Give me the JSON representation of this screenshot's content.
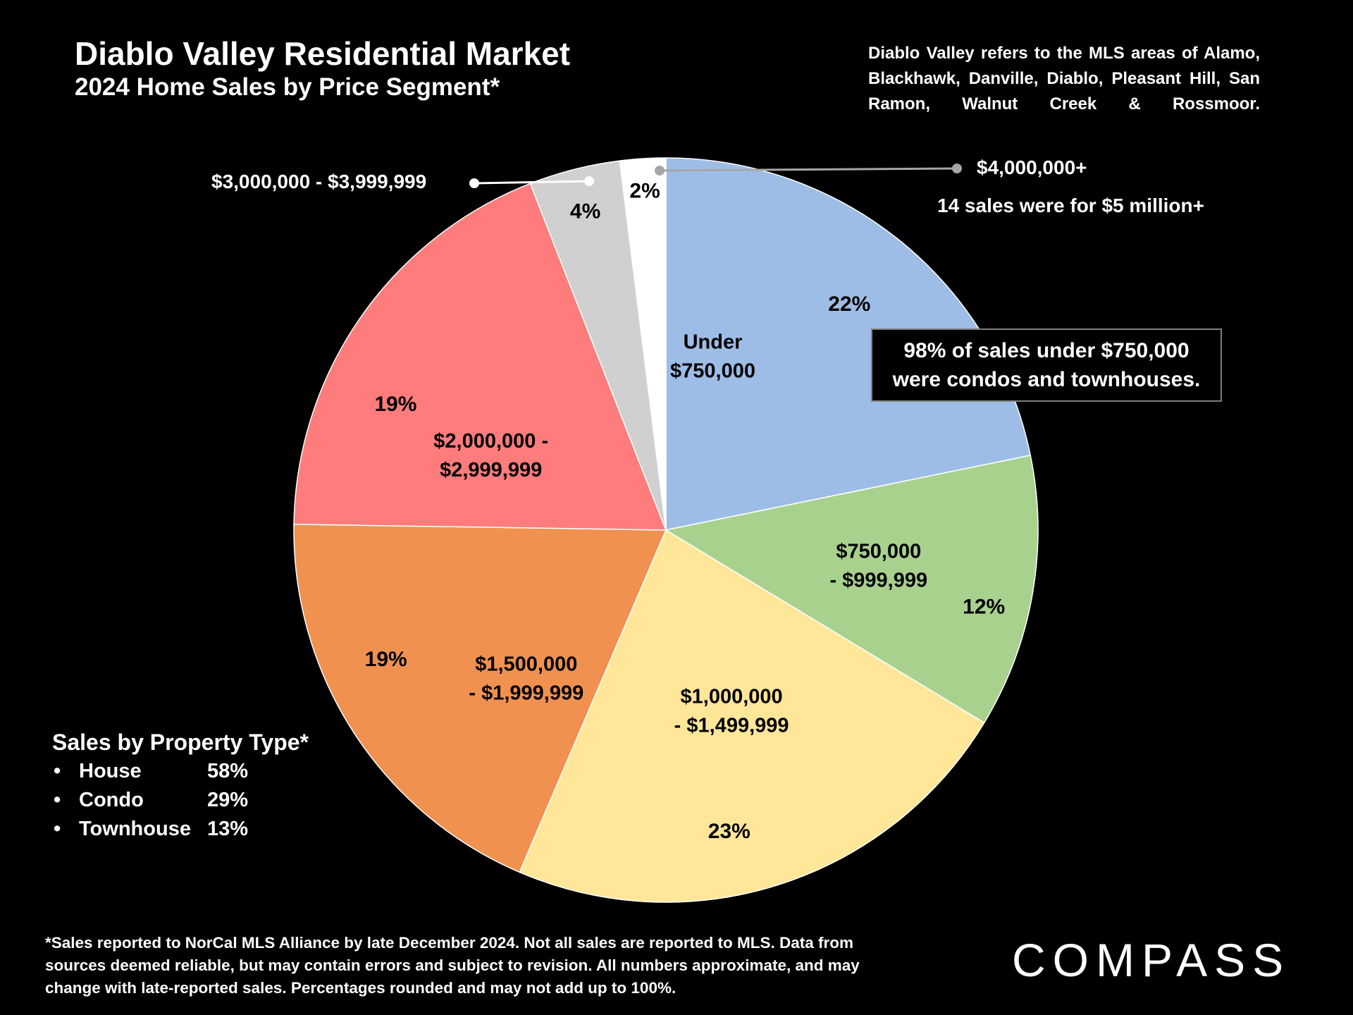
{
  "header": {
    "title": "Diablo Valley Residential Market",
    "subtitle": "2024 Home Sales by Price Segment*"
  },
  "note_top": "Diablo Valley refers to the MLS areas of Alamo, Blackhawk, Danville, Diablo, Pleasant Hill, San Ramon, Walnut Creek & Rossmoor.",
  "callout": {
    "line1": "98% of sales under $750,000",
    "line2": "were condos and townhouses."
  },
  "annotations": {
    "four_million": "$4,000,000+",
    "five_million": "14 sales were for $5 million+",
    "three_million": "$3,000,000 - $3,999,999"
  },
  "property_type": {
    "title": "Sales by Property Type*",
    "items": [
      {
        "name": "House",
        "pct": "58%"
      },
      {
        "name": "Condo",
        "pct": "29%"
      },
      {
        "name": "Townhouse",
        "pct": "13%"
      }
    ]
  },
  "footnote": "*Sales reported to NorCal MLS Alliance by late December 2024. Not all sales are reported to MLS. Data from sources deemed reliable, but may contain errors and subject to revision. All numbers approximate, and may change with late-reported sales. Percentages rounded and may not add up to 100%.",
  "logo": "COMPASS",
  "colors": {
    "background": "#000000",
    "under_750k": "#9dbde6",
    "750k_1m": "#a9d18e",
    "1m_1_5m": "#ffe699",
    "1_5m_2m": "#f0914f",
    "2m_3m": "#ff7c7c",
    "3m_4m": "#d0d0d0",
    "4m_plus": "#ffffff"
  },
  "chart_data": {
    "type": "pie",
    "title": "2024 Home Sales by Price Segment*",
    "start_angle_deg": 0,
    "direction": "clockwise",
    "slices": [
      {
        "label": "Under $750,000",
        "value": 22,
        "value_label": "22%",
        "color": "#9dbde6",
        "label_lines": [
          "Under",
          "$750,000"
        ]
      },
      {
        "label": "$750,000 - $999,999",
        "value": 12,
        "value_label": "12%",
        "color": "#a9d18e",
        "label_lines": [
          "$750,000",
          "- $999,999"
        ]
      },
      {
        "label": "$1,000,000 - $1,499,999",
        "value": 23,
        "value_label": "23%",
        "color": "#ffe699",
        "label_lines": [
          "$1,000,000",
          "- $1,499,999"
        ]
      },
      {
        "label": "$1,500,000 - $1,999,999",
        "value": 19,
        "value_label": "19%",
        "color": "#f0914f",
        "label_lines": [
          "$1,500,000",
          "- $1,999,999"
        ]
      },
      {
        "label": "$2,000,000 - $2,999,999",
        "value": 19,
        "value_label": "19%",
        "color": "#ff7c7c",
        "label_lines": [
          "$2,000,000 -",
          "$2,999,999"
        ]
      },
      {
        "label": "$3,000,000 - $3,999,999",
        "value": 4,
        "value_label": "4%",
        "color": "#d0d0d0",
        "label_lines": []
      },
      {
        "label": "$4,000,000+",
        "value": 2,
        "value_label": "2%",
        "color": "#ffffff",
        "label_lines": []
      }
    ]
  }
}
